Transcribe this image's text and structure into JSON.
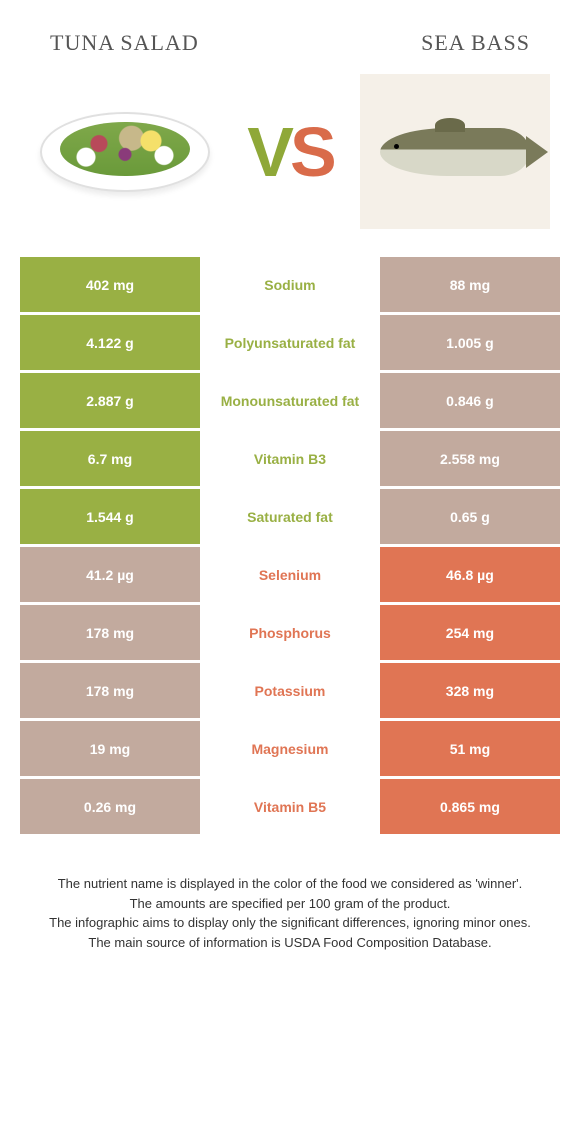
{
  "colors": {
    "green": "#99b044",
    "orange": "#e07554",
    "left_dim": "#c2aa9e",
    "right_dim": "#c2aa9e"
  },
  "left": {
    "title": "TUNA SALAD"
  },
  "right": {
    "title": "SEA BASS"
  },
  "vs": {
    "v": "V",
    "s": "S"
  },
  "rows": [
    {
      "nutrient": "Sodium",
      "left": "402 mg",
      "right": "88 mg",
      "winner": "left"
    },
    {
      "nutrient": "Polyunsaturated fat",
      "left": "4.122 g",
      "right": "1.005 g",
      "winner": "left"
    },
    {
      "nutrient": "Monounsaturated fat",
      "left": "2.887 g",
      "right": "0.846 g",
      "winner": "left"
    },
    {
      "nutrient": "Vitamin B3",
      "left": "6.7 mg",
      "right": "2.558 mg",
      "winner": "left"
    },
    {
      "nutrient": "Saturated fat",
      "left": "1.544 g",
      "right": "0.65 g",
      "winner": "left"
    },
    {
      "nutrient": "Selenium",
      "left": "41.2 µg",
      "right": "46.8 µg",
      "winner": "right"
    },
    {
      "nutrient": "Phosphorus",
      "left": "178 mg",
      "right": "254 mg",
      "winner": "right"
    },
    {
      "nutrient": "Potassium",
      "left": "178 mg",
      "right": "328 mg",
      "winner": "right"
    },
    {
      "nutrient": "Magnesium",
      "left": "19 mg",
      "right": "51 mg",
      "winner": "right"
    },
    {
      "nutrient": "Vitamin B5",
      "left": "0.26 mg",
      "right": "0.865 mg",
      "winner": "right"
    }
  ],
  "notes": [
    "The nutrient name is displayed in the color of the food we considered as 'winner'.",
    "The amounts are specified per 100 gram of the product.",
    "The infographic aims to display only the significant differences, ignoring minor ones.",
    "The main source of information is USDA Food Composition Database."
  ]
}
